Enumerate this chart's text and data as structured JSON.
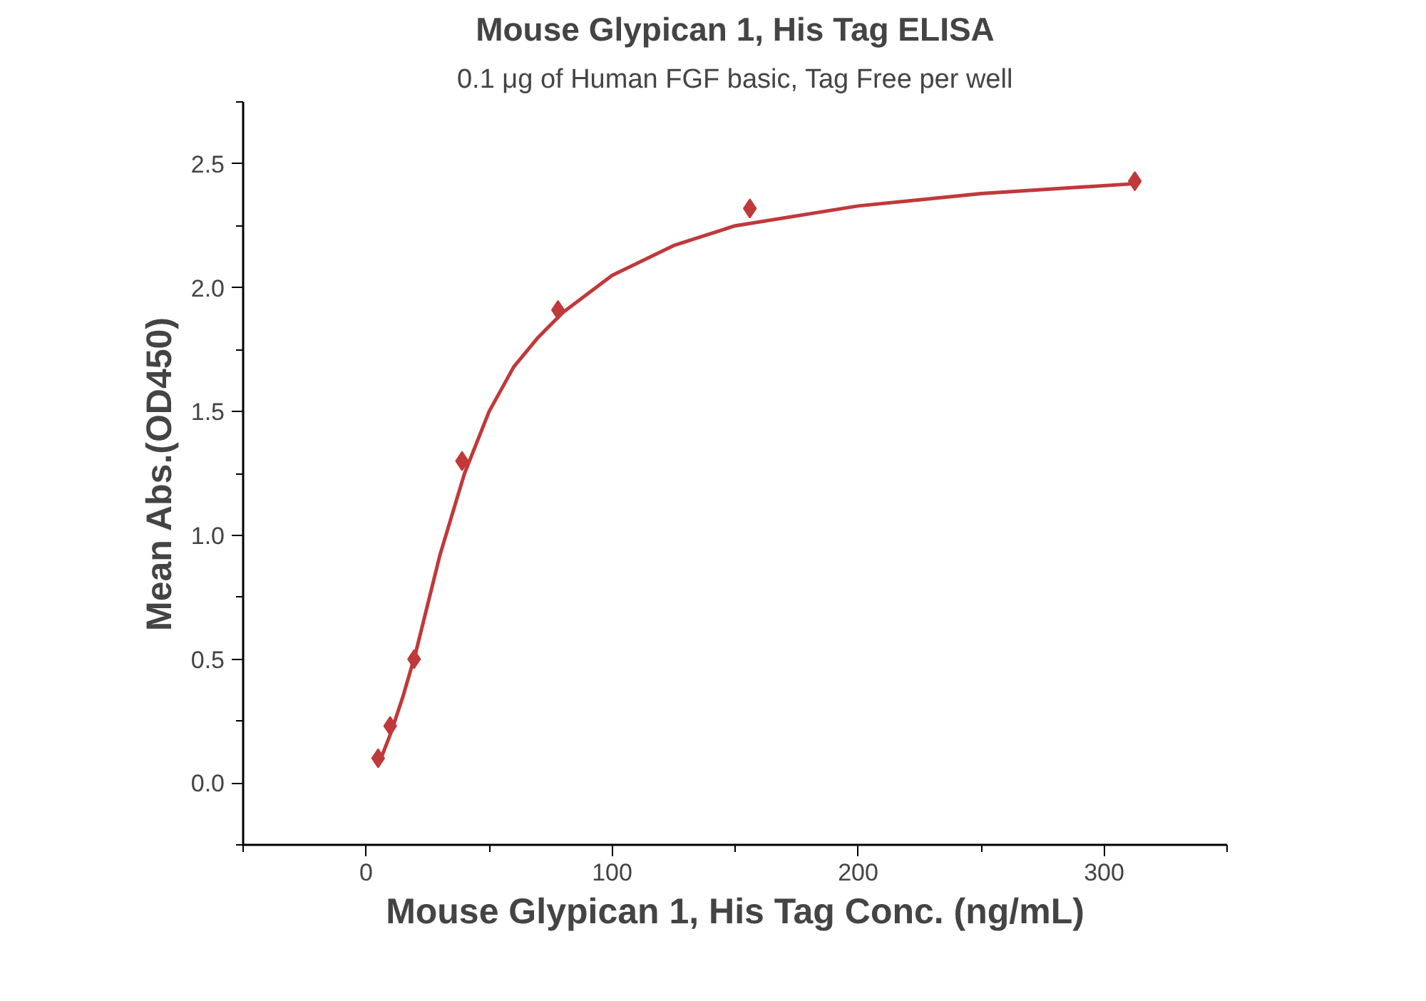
{
  "chart_data": {
    "type": "scatter",
    "title": "Mouse Glypican 1, His Tag ELISA",
    "subtitle": "0.1 μg of Human FGF basic, Tag Free per well",
    "xlabel": "Mouse Glypican 1, His Tag Conc. (ng/mL)",
    "ylabel": "Mean Abs.(OD450)",
    "series": [
      {
        "color": "#c0393b",
        "marker": "diamond",
        "x": [
          4.88,
          9.77,
          19.5,
          39,
          78,
          156,
          312.5
        ],
        "values": [
          0.1,
          0.23,
          0.5,
          1.3,
          1.91,
          2.32,
          2.43
        ]
      },
      {
        "type": "line",
        "color": "#c0393b",
        "line_style": "solid",
        "x": [
          4.88,
          10,
          15,
          20,
          25,
          30,
          40,
          50,
          60,
          70,
          80,
          100,
          125,
          150,
          200,
          250,
          312.5
        ],
        "values": [
          0.07,
          0.2,
          0.35,
          0.52,
          0.72,
          0.92,
          1.25,
          1.5,
          1.68,
          1.8,
          1.9,
          2.05,
          2.17,
          2.25,
          2.33,
          2.38,
          2.42
        ]
      }
    ],
    "xlim": [
      -50,
      350
    ],
    "ylim": [
      -0.25,
      2.75
    ],
    "xticks": [
      0,
      100,
      200,
      300
    ],
    "yticks": [
      {
        "value": 0,
        "label": "0.0"
      },
      0.5,
      {
        "value": 1,
        "label": "1.0"
      },
      1.5,
      {
        "value": 2,
        "label": "2.0"
      },
      2.5
    ],
    "grid": false
  }
}
